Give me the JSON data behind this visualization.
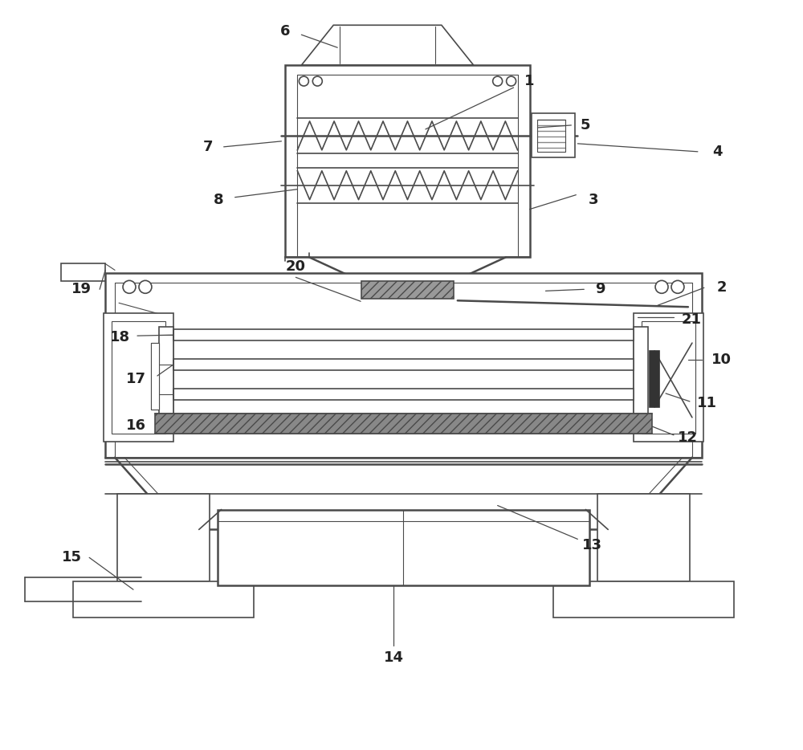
{
  "bg_color": "#ffffff",
  "line_color": "#4a4a4a",
  "fig_width": 10.0,
  "fig_height": 9.34,
  "lw_thin": 0.8,
  "lw_main": 1.2,
  "lw_thick": 1.8,
  "label_fontsize": 13,
  "label_color": "#222222"
}
